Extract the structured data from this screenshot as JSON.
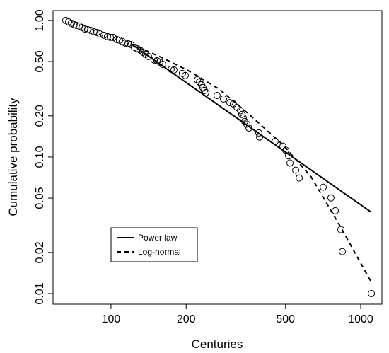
{
  "chart_data": {
    "type": "scatter",
    "xlabel": "Centuries",
    "ylabel": "Cumulative probability",
    "xlog": true,
    "ylog": true,
    "color": "#000000",
    "xlim": [
      58.6,
      1216
    ],
    "ylim": [
      0.00836,
      1.18
    ],
    "xticks": [
      100,
      200,
      500,
      1000
    ],
    "yticks": [
      {
        "value": 1,
        "label": "1.00"
      },
      {
        "value": 0.5,
        "label": "0.50"
      },
      {
        "value": 0.2,
        "label": "0.20"
      },
      {
        "value": 0.1,
        "label": "0.10"
      },
      {
        "value": 0.05,
        "label": "0.05"
      },
      {
        "value": 0.02,
        "label": "0.02"
      },
      {
        "value": 0.01,
        "label": "0.01"
      }
    ],
    "legend": "bottom-left",
    "points": {
      "x": [
        65.9,
        67.6,
        69.4,
        71.2,
        72.6,
        74.6,
        76.5,
        78.6,
        80.6,
        82.8,
        85.5,
        87.8,
        90.1,
        93.7,
        96.8,
        99.4,
        102,
        105.4,
        108.1,
        111,
        113.9,
        117,
        120,
        124,
        127.3,
        130.7,
        134.1,
        137.7,
        141.3,
        148.9,
        152.8,
        156.8,
        161,
        174.1,
        178.7,
        193.2,
        198.4,
        221.6,
        226,
        230.5,
        233.5,
        236.6,
        239.7,
        266,
        282.1,
        299.1,
        309,
        319.3,
        329.9,
        334.2,
        338.6,
        343.1,
        349.8,
        356.8,
        390.9,
        393.5,
        454.1,
        488,
        501,
        514,
        521,
        549,
        567,
        708,
        760,
        791,
        833,
        844,
        1103
      ],
      "values": [
        1.0,
        0.976,
        0.953,
        0.931,
        0.92,
        0.909,
        0.888,
        0.866,
        0.856,
        0.846,
        0.826,
        0.817,
        0.797,
        0.779,
        0.761,
        0.751,
        0.751,
        0.725,
        0.716,
        0.7,
        0.683,
        0.675,
        0.667,
        0.636,
        0.621,
        0.607,
        0.585,
        0.564,
        0.544,
        0.513,
        0.507,
        0.495,
        0.477,
        0.439,
        0.434,
        0.409,
        0.395,
        0.367,
        0.354,
        0.338,
        0.322,
        0.307,
        0.296,
        0.282,
        0.266,
        0.25,
        0.245,
        0.231,
        0.218,
        0.205,
        0.193,
        0.182,
        0.174,
        0.163,
        0.15,
        0.14,
        0.13,
        0.12,
        0.112,
        0.102,
        0.0903,
        0.08,
        0.0702,
        0.0601,
        0.0502,
        0.0404,
        0.0294,
        0.0203,
        0.01
      ]
    },
    "series": [
      {
        "name": "Power law",
        "style": "solid",
        "x": [
          120,
          1103
        ],
        "values": [
          0.675,
          0.0394
        ]
      },
      {
        "name": "Log-normal",
        "style": "dashed",
        "x": [
          120,
          161,
          209,
          271,
          352,
          488,
          633,
          822,
          1103
        ],
        "values": [
          0.675,
          0.531,
          0.419,
          0.314,
          0.21,
          0.123,
          0.0716,
          0.0318,
          0.0121
        ]
      }
    ]
  }
}
